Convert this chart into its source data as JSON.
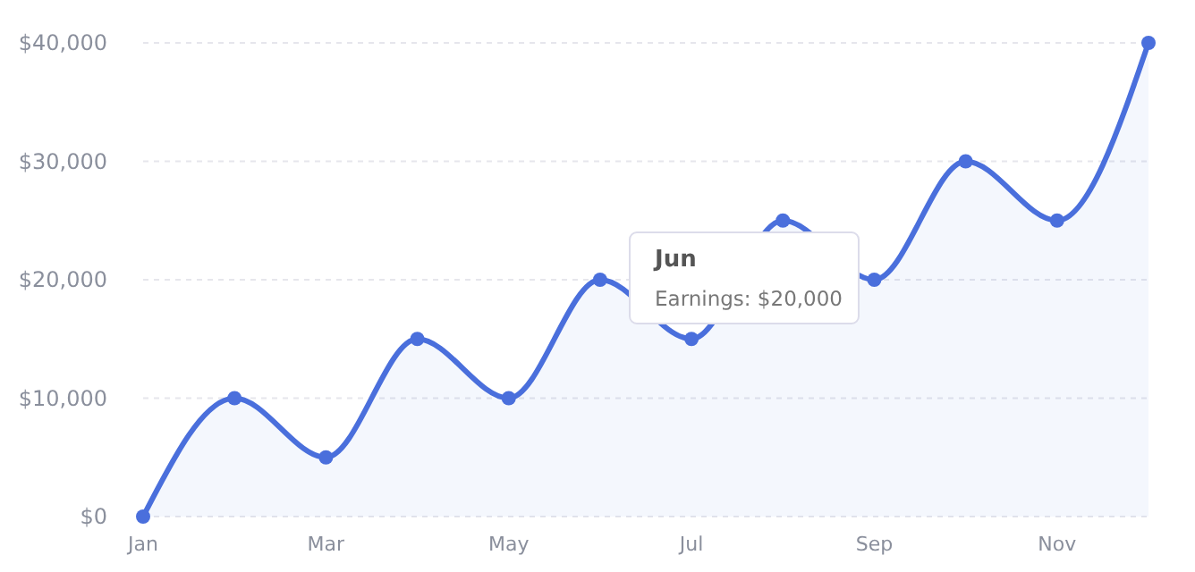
{
  "chart_data": {
    "type": "area",
    "categories": [
      "Jan",
      null,
      "Mar",
      null,
      "May",
      null,
      "Jul",
      null,
      "Sep",
      null,
      "Nov",
      null
    ],
    "series": [
      {
        "color": "#4a6fdc",
        "values": [
          0,
          10000,
          5000,
          15000,
          10000,
          20000,
          15000,
          25000,
          20000,
          30000,
          25000,
          40000
        ]
      }
    ],
    "ylim": [
      0,
      40000
    ],
    "yticks": [
      {
        "value": 0,
        "label": "$0"
      },
      {
        "value": 10000,
        "label": "$10,000"
      },
      {
        "value": 20000,
        "label": "$20,000"
      },
      {
        "value": 30000,
        "label": "$30,000"
      },
      {
        "value": 40000,
        "label": "$40,000"
      }
    ],
    "grid": "y",
    "marker": "circle",
    "annotations": [
      "Jun",
      "Earnings: $20,000"
    ]
  }
}
